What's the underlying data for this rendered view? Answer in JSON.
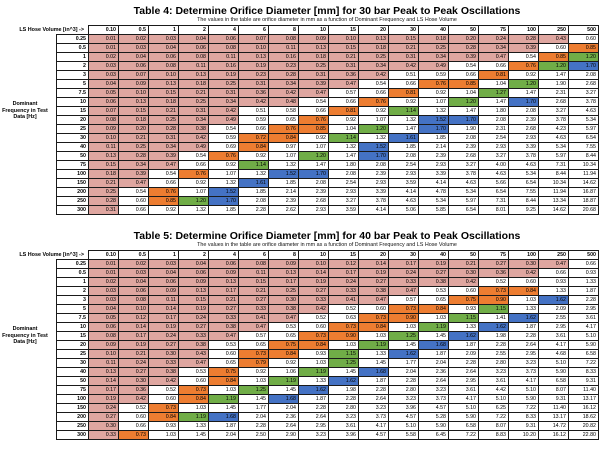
{
  "colors": {
    "pink": "#dfa6a0",
    "orange": "#ED7D31",
    "green": "#70AD47",
    "blue": "#4472C4",
    "white": "#ffffff",
    "grid_line": "#1a1a1a",
    "text": "#000000"
  },
  "value_color_bands": [
    {
      "max": 0.495,
      "color": "pink"
    },
    {
      "max": 0.695,
      "color": "white"
    },
    {
      "max": 0.905,
      "color": "orange"
    },
    {
      "max": 1.095,
      "color": "white"
    },
    {
      "max": 1.305,
      "color": "green"
    },
    {
      "max": 1.495,
      "color": "white"
    },
    {
      "max": 1.755,
      "color": "blue"
    },
    {
      "max": 1000000,
      "color": "white"
    }
  ],
  "tables": [
    {
      "title": "Table 4: Determine Orifice Diameter [mm] for 30 bar Peak to Peak Oscillations",
      "subtitle": "The values in the table are orifice diameter in mm as a function of Dominant Frequency and LS Hose Volume",
      "col_header_label": "LS Hose Volume [in^3] ->",
      "row_header_lines": [
        "Dominant",
        "Frequency in Test",
        "Data [Hz]"
      ],
      "columns": [
        "0.10",
        "0.5",
        "1",
        "2",
        "4",
        "6",
        "8",
        "10",
        "15",
        "20",
        "30",
        "40",
        "50",
        "75",
        "100",
        "250",
        "500"
      ],
      "rows": [
        {
          "freq": "0.25",
          "values": [
            0.01,
            0.02,
            0.03,
            0.04,
            0.06,
            0.07,
            0.08,
            0.09,
            0.1,
            0.13,
            0.15,
            0.18,
            0.2,
            0.24,
            0.28,
            0.43,
            0.6
          ]
        },
        {
          "freq": "0.5",
          "values": [
            0.01,
            0.03,
            0.04,
            0.06,
            0.08,
            0.1,
            0.11,
            0.13,
            0.15,
            0.18,
            0.21,
            0.25,
            0.28,
            0.34,
            0.39,
            0.6,
            0.85
          ]
        },
        {
          "freq": "1",
          "values": [
            0.02,
            0.04,
            0.06,
            0.08,
            0.11,
            0.13,
            0.16,
            0.18,
            0.21,
            0.25,
            0.31,
            0.34,
            0.39,
            0.47,
            0.54,
            0.85,
            1.2
          ]
        },
        {
          "freq": "2",
          "values": [
            0.03,
            0.06,
            0.08,
            0.11,
            0.16,
            0.19,
            0.23,
            0.25,
            0.31,
            0.34,
            0.42,
            0.49,
            0.54,
            0.66,
            0.76,
            1.2,
            1.7
          ]
        },
        {
          "freq": "3",
          "values": [
            0.03,
            0.07,
            0.1,
            0.13,
            0.19,
            0.23,
            0.28,
            0.31,
            0.36,
            0.42,
            0.51,
            0.59,
            0.66,
            0.81,
            0.92,
            1.47,
            2.08
          ]
        },
        {
          "freq": "5",
          "values": [
            0.04,
            0.09,
            0.13,
            0.18,
            0.25,
            0.31,
            0.34,
            0.39,
            0.47,
            0.54,
            0.66,
            0.76,
            0.85,
            1.04,
            1.2,
            1.9,
            2.68
          ]
        },
        {
          "freq": "7.5",
          "values": [
            0.05,
            0.1,
            0.15,
            0.21,
            0.31,
            0.36,
            0.42,
            0.47,
            0.57,
            0.66,
            0.81,
            0.92,
            1.04,
            1.27,
            1.47,
            2.31,
            3.27
          ]
        },
        {
          "freq": "10",
          "values": [
            0.06,
            0.13,
            0.18,
            0.25,
            0.34,
            0.42,
            0.48,
            0.54,
            0.66,
            0.76,
            0.92,
            1.07,
            1.2,
            1.47,
            1.7,
            2.68,
            3.78
          ]
        },
        {
          "freq": "15",
          "values": [
            0.07,
            0.15,
            0.21,
            0.31,
            0.42,
            0.51,
            0.58,
            0.66,
            0.81,
            0.92,
            1.14,
            1.32,
            1.47,
            1.8,
            2.08,
            3.27,
            4.63
          ]
        },
        {
          "freq": "20",
          "values": [
            0.08,
            0.18,
            0.25,
            0.34,
            0.49,
            0.59,
            0.65,
            0.76,
            0.92,
            1.07,
            1.32,
            1.52,
            1.7,
            2.08,
            2.39,
            3.78,
            5.34
          ]
        },
        {
          "freq": "25",
          "values": [
            0.09,
            0.2,
            0.28,
            0.38,
            0.54,
            0.66,
            0.76,
            0.85,
            1.04,
            1.2,
            1.47,
            1.7,
            1.9,
            2.31,
            2.68,
            4.23,
            5.97
          ]
        },
        {
          "freq": "30",
          "values": [
            0.1,
            0.21,
            0.31,
            0.42,
            0.59,
            0.72,
            0.84,
            0.92,
            1.14,
            1.32,
            1.61,
            1.85,
            2.08,
            2.54,
            2.93,
            4.63,
            6.54
          ]
        },
        {
          "freq": "40",
          "values": [
            0.11,
            0.25,
            0.34,
            0.49,
            0.69,
            0.84,
            0.97,
            1.07,
            1.32,
            1.52,
            1.85,
            2.14,
            2.39,
            2.93,
            3.39,
            5.34,
            7.55
          ]
        },
        {
          "freq": "50",
          "values": [
            0.13,
            0.28,
            0.39,
            0.54,
            0.76,
            0.92,
            1.07,
            1.2,
            1.47,
            1.7,
            2.08,
            2.39,
            2.68,
            3.27,
            3.78,
            5.97,
            8.44
          ]
        },
        {
          "freq": "75",
          "values": [
            0.15,
            0.34,
            0.47,
            0.66,
            0.92,
            1.14,
            1.32,
            1.47,
            1.8,
            2.08,
            2.54,
            2.93,
            3.27,
            4.0,
            4.63,
            7.31,
            10.34
          ]
        },
        {
          "freq": "100",
          "values": [
            0.18,
            0.39,
            0.54,
            0.76,
            1.07,
            1.32,
            1.52,
            1.7,
            2.08,
            2.39,
            2.93,
            3.39,
            3.78,
            4.63,
            5.34,
            8.44,
            11.94
          ]
        },
        {
          "freq": "150",
          "values": [
            0.21,
            0.47,
            0.66,
            0.92,
            1.32,
            1.61,
            1.85,
            2.08,
            2.54,
            2.93,
            3.59,
            4.14,
            4.63,
            5.66,
            6.54,
            10.34,
            14.62
          ]
        },
        {
          "freq": "200",
          "values": [
            0.25,
            0.54,
            0.76,
            1.07,
            1.52,
            1.85,
            2.14,
            2.39,
            2.93,
            3.39,
            4.14,
            4.78,
            5.34,
            6.54,
            7.55,
            11.94,
            16.87
          ]
        },
        {
          "freq": "250",
          "values": [
            0.28,
            0.6,
            0.85,
            1.2,
            1.7,
            2.08,
            2.39,
            2.68,
            3.27,
            3.78,
            4.63,
            5.34,
            5.97,
            7.31,
            8.44,
            13.34,
            18.87
          ]
        },
        {
          "freq": "300",
          "values": [
            0.31,
            0.66,
            0.92,
            1.32,
            1.85,
            2.28,
            2.62,
            2.93,
            3.59,
            4.14,
            5.06,
            5.85,
            6.54,
            8.01,
            9.25,
            14.62,
            20.68
          ]
        }
      ]
    },
    {
      "title": "Table 5: Determine Orifice Diameter [mm] for 40 bar Peak to Peak Oscillations",
      "subtitle": "The values in the table are orifice diameter in mm as a function of Dominant Frequency and LS Hose Volume",
      "col_header_label": "LS Hose Volume [in^3] ->",
      "row_header_lines": [
        "Dominant",
        "Frequency in Test",
        "Data [Hz]"
      ],
      "columns": [
        "0.10",
        "0.5",
        "1",
        "2",
        "4",
        "6",
        "8",
        "10",
        "15",
        "20",
        "30",
        "40",
        "50",
        "75",
        "100",
        "250",
        "500"
      ],
      "rows": [
        {
          "freq": "0.25",
          "values": [
            0.01,
            0.02,
            0.03,
            0.04,
            0.06,
            0.08,
            0.09,
            0.1,
            0.12,
            0.14,
            0.17,
            0.19,
            0.21,
            0.27,
            0.3,
            0.47,
            0.66
          ]
        },
        {
          "freq": "0.5",
          "values": [
            0.01,
            0.03,
            0.04,
            0.06,
            0.09,
            0.11,
            0.13,
            0.14,
            0.17,
            0.19,
            0.24,
            0.27,
            0.3,
            0.36,
            0.42,
            0.66,
            0.93
          ]
        },
        {
          "freq": "1",
          "values": [
            0.02,
            0.04,
            0.06,
            0.09,
            0.13,
            0.15,
            0.17,
            0.19,
            0.24,
            0.27,
            0.33,
            0.38,
            0.42,
            0.52,
            0.6,
            0.93,
            1.33
          ]
        },
        {
          "freq": "2",
          "values": [
            0.03,
            0.06,
            0.09,
            0.13,
            0.17,
            0.21,
            0.25,
            0.27,
            0.33,
            0.38,
            0.47,
            0.53,
            0.6,
            0.73,
            0.84,
            1.33,
            1.87
          ]
        },
        {
          "freq": "3",
          "values": [
            0.03,
            0.08,
            0.11,
            0.15,
            0.21,
            0.27,
            0.3,
            0.33,
            0.41,
            0.47,
            0.57,
            0.65,
            0.75,
            0.9,
            1.03,
            1.62,
            2.28
          ]
        },
        {
          "freq": "5",
          "values": [
            0.04,
            0.1,
            0.14,
            0.19,
            0.27,
            0.33,
            0.38,
            0.42,
            0.52,
            0.6,
            0.73,
            0.84,
            0.93,
            1.15,
            1.33,
            2.09,
            2.95
          ]
        },
        {
          "freq": "7.5",
          "values": [
            0.05,
            0.12,
            0.17,
            0.24,
            0.33,
            0.41,
            0.47,
            0.52,
            0.63,
            0.73,
            0.9,
            1.03,
            1.15,
            1.41,
            1.62,
            2.55,
            3.61
          ]
        },
        {
          "freq": "10",
          "values": [
            0.06,
            0.14,
            0.19,
            0.27,
            0.38,
            0.47,
            0.53,
            0.6,
            0.73,
            0.84,
            1.03,
            1.19,
            1.33,
            1.62,
            1.87,
            2.95,
            4.17
          ]
        },
        {
          "freq": "15",
          "values": [
            0.08,
            0.17,
            0.24,
            0.33,
            0.47,
            0.57,
            0.65,
            0.73,
            0.9,
            1.03,
            1.25,
            1.45,
            1.62,
            1.98,
            2.28,
            3.61,
            5.1
          ]
        },
        {
          "freq": "20",
          "values": [
            0.09,
            0.19,
            0.27,
            0.38,
            0.53,
            0.65,
            0.75,
            0.84,
            1.03,
            1.19,
            1.45,
            1.68,
            1.87,
            2.28,
            2.64,
            4.17,
            5.9
          ]
        },
        {
          "freq": "25",
          "values": [
            0.1,
            0.21,
            0.3,
            0.43,
            0.6,
            0.73,
            0.84,
            0.93,
            1.15,
            1.33,
            1.62,
            1.87,
            2.09,
            2.55,
            2.95,
            4.68,
            6.58
          ]
        },
        {
          "freq": "30",
          "values": [
            0.11,
            0.24,
            0.33,
            0.47,
            0.65,
            0.79,
            0.92,
            1.03,
            1.25,
            1.45,
            1.77,
            2.04,
            2.28,
            2.8,
            3.23,
            5.1,
            7.22
          ]
        },
        {
          "freq": "40",
          "values": [
            0.13,
            0.27,
            0.38,
            0.53,
            0.75,
            0.92,
            1.06,
            1.19,
            1.45,
            1.68,
            2.04,
            2.36,
            2.64,
            3.23,
            3.73,
            5.9,
            8.33
          ]
        },
        {
          "freq": "50",
          "values": [
            0.14,
            0.3,
            0.42,
            0.6,
            0.84,
            1.03,
            1.19,
            1.33,
            1.62,
            1.87,
            2.28,
            2.64,
            2.95,
            3.61,
            4.17,
            6.58,
            9.31
          ]
        },
        {
          "freq": "75",
          "values": [
            0.17,
            0.36,
            0.52,
            0.73,
            1.03,
            1.25,
            1.45,
            1.62,
            1.98,
            2.28,
            2.8,
            3.23,
            3.61,
            4.42,
            5.1,
            8.07,
            11.4
          ]
        },
        {
          "freq": "100",
          "values": [
            0.19,
            0.42,
            0.6,
            0.84,
            1.19,
            1.45,
            1.68,
            1.87,
            2.28,
            2.64,
            3.23,
            3.73,
            4.17,
            5.1,
            5.9,
            9.31,
            13.17
          ]
        },
        {
          "freq": "150",
          "values": [
            0.24,
            0.52,
            0.73,
            1.03,
            1.45,
            1.77,
            2.04,
            2.28,
            2.8,
            3.23,
            3.96,
            4.57,
            5.1,
            6.25,
            7.22,
            11.4,
            16.12
          ]
        },
        {
          "freq": "200",
          "values": [
            0.27,
            0.6,
            0.84,
            1.19,
            1.68,
            2.04,
            2.36,
            2.64,
            3.23,
            3.73,
            4.57,
            5.28,
            5.9,
            7.22,
            8.33,
            13.17,
            18.62
          ]
        },
        {
          "freq": "250",
          "values": [
            0.3,
            0.66,
            0.93,
            1.33,
            1.87,
            2.28,
            2.64,
            2.95,
            3.61,
            4.17,
            5.1,
            5.9,
            6.58,
            8.07,
            9.31,
            14.72,
            20.82
          ]
        },
        {
          "freq": "300",
          "values": [
            0.33,
            0.73,
            1.03,
            1.45,
            2.04,
            2.5,
            2.9,
            3.23,
            3.96,
            4.57,
            5.58,
            6.45,
            7.22,
            8.83,
            10.2,
            16.12,
            22.8
          ]
        }
      ]
    }
  ]
}
